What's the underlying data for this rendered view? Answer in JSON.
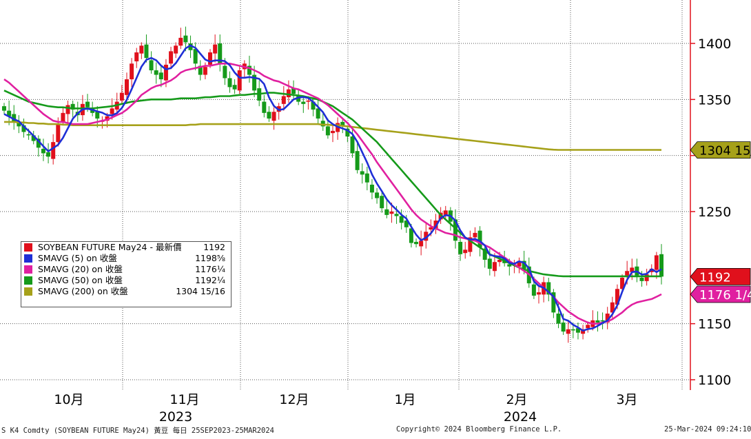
{
  "chart_data": {
    "type": "candlestick",
    "y_ticks": [
      1100,
      1150,
      1250,
      1300,
      1350,
      1400
    ],
    "y_tick_labels": [
      "1100",
      "1150",
      "1250",
      "1350",
      "1400"
    ],
    "ylim": [
      1090,
      1442
    ],
    "x_month_labels": [
      "10月",
      "11月",
      "12月",
      "1月",
      "2月",
      "3月"
    ],
    "x_year_labels": [
      "2023",
      "2024"
    ],
    "legend": [
      {
        "label": "SOYBEAN FUTURE May24 - 最新價",
        "value": "1192",
        "color": "#e0101c"
      },
      {
        "label": "SMAVG (5)  on 收盤",
        "value": "1198⅝",
        "color": "#1f2fd6"
      },
      {
        "label": "SMAVG (20)  on 收盤",
        "value": "1176¼",
        "color": "#e020a0"
      },
      {
        "label": "SMAVG (50)  on 收盤",
        "value": "1192¼",
        "color": "#159a1a"
      },
      {
        "label": "SMAVG (200)  on 收盤",
        "value": "1304 15/16",
        "color": "#a6a11a"
      }
    ],
    "price_tags": [
      {
        "text": "1304 15/16",
        "value": 1304.94,
        "bg": "#a6a11a",
        "fg": "#000000"
      },
      {
        "text": "1192",
        "value": 1192,
        "bg": "#e0101c",
        "fg": "#ffffff"
      },
      {
        "text": "1176 1/4",
        "value": 1176.25,
        "bg": "#e020a0",
        "fg": "#ffffff"
      }
    ],
    "series_close": [
      1340,
      1335,
      1330,
      1326,
      1321,
      1318,
      1313,
      1307,
      1302,
      1299,
      1312,
      1328,
      1338,
      1345,
      1341,
      1336,
      1346,
      1343,
      1338,
      1333,
      1331,
      1335,
      1342,
      1348,
      1356,
      1368,
      1382,
      1392,
      1398,
      1387,
      1376,
      1372,
      1368,
      1381,
      1393,
      1398,
      1405,
      1401,
      1394,
      1382,
      1372,
      1379,
      1392,
      1399,
      1382,
      1369,
      1361,
      1359,
      1376,
      1382,
      1372,
      1358,
      1349,
      1338,
      1333,
      1339,
      1344,
      1353,
      1359,
      1355,
      1348,
      1346,
      1349,
      1341,
      1333,
      1326,
      1318,
      1322,
      1329,
      1326,
      1317,
      1302,
      1287,
      1283,
      1276,
      1267,
      1262,
      1253,
      1247,
      1250,
      1246,
      1240,
      1236,
      1222,
      1221,
      1224,
      1232,
      1236,
      1242,
      1249,
      1251,
      1241,
      1224,
      1212,
      1216,
      1227,
      1231,
      1218,
      1207,
      1199,
      1205,
      1207,
      1204,
      1201,
      1203,
      1206,
      1199,
      1186,
      1175,
      1178,
      1187,
      1176,
      1160,
      1150,
      1143,
      1145,
      1144,
      1142,
      1145,
      1149,
      1153,
      1151,
      1152,
      1159,
      1169,
      1181,
      1191,
      1197,
      1200,
      1193,
      1188,
      1194,
      1199,
      1211,
      1192
    ],
    "sma5": [
      1337,
      1334.8,
      1332.4,
      1330.6,
      1326,
      1322,
      1317.6,
      1313,
      1308.2,
      1303.8,
      1306.6,
      1309.6,
      1315.8,
      1324.4,
      1332.8,
      1337.6,
      1341.2,
      1341.8,
      1340.8,
      1339.4,
      1338.2,
      1336,
      1335.8,
      1337.8,
      1342.4,
      1349.8,
      1359.2,
      1369.2,
      1379.2,
      1385.4,
      1387,
      1385,
      1380.2,
      1376.8,
      1378,
      1382.4,
      1389,
      1395.6,
      1398.2,
      1396,
      1390.8,
      1385.6,
      1383.8,
      1384.8,
      1384.8,
      1384.2,
      1380.6,
      1374,
      1369.4,
      1369.4,
      1370,
      1369.4,
      1368.4,
      1363.8,
      1352,
      1344.2,
      1340.6,
      1341.4,
      1345.6,
      1350,
      1351.8,
      1352.2,
      1351.4,
      1347.8,
      1343.4,
      1338.6,
      1331.4,
      1328,
      1325.6,
      1324.2,
      1322.4,
      1319.2,
      1312.2,
      1303,
      1293.8,
      1283,
      1275,
      1268.2,
      1261,
      1255.8,
      1251.6,
      1247.2,
      1243.8,
      1236.4,
      1229.4,
      1224.4,
      1226.6,
      1230.6,
      1236.8,
      1244.2,
      1246.8,
      1246.2,
      1241.8,
      1233.2,
      1226.8,
      1225,
      1225.6,
      1223.6,
      1219.8,
      1211.4,
      1210.4,
      1209.8,
      1208.2,
      1204.2,
      1203.4,
      1205.6,
      1204.4,
      1199.4,
      1187.8,
      1183.6,
      1182,
      1178.2,
      1174.2,
      1164.8,
      1154.2,
      1152.6,
      1149,
      1146.6,
      1143.8,
      1145.2,
      1145.8,
      1148,
      1150.6,
      1152.8,
      1158.4,
      1166.4,
      1178.4,
      1189.2,
      1196,
      1196.6,
      1193.8,
      1194.4,
      1198.6,
      1196,
      1198.6
    ],
    "sma20": [
      1368,
      1365,
      1361,
      1357,
      1353,
      1349,
      1345,
      1341,
      1337,
      1334,
      1331,
      1330,
      1330,
      1329,
      1328,
      1328,
      1328,
      1328,
      1329,
      1330,
      1331,
      1332,
      1334,
      1336,
      1338,
      1341,
      1345,
      1349,
      1354,
      1357,
      1360,
      1362,
      1363,
      1365,
      1367,
      1370,
      1374,
      1376,
      1377,
      1378,
      1379,
      1380,
      1380,
      1381,
      1382,
      1382,
      1382,
      1381,
      1380,
      1379,
      1378,
      1376,
      1374,
      1371,
      1369,
      1367,
      1366,
      1364,
      1362,
      1360,
      1359,
      1357,
      1355,
      1353,
      1351,
      1348,
      1345,
      1341,
      1337,
      1333,
      1329,
      1324,
      1319,
      1313,
      1307,
      1301,
      1294,
      1288,
      1282,
      1276,
      1270,
      1264,
      1258,
      1252,
      1247,
      1243,
      1240,
      1237,
      1235,
      1233,
      1231,
      1230,
      1229,
      1227,
      1226,
      1225,
      1224,
      1222,
      1220,
      1218,
      1215,
      1212,
      1209,
      1206,
      1203,
      1200,
      1197,
      1194,
      1190,
      1186,
      1182,
      1178,
      1174,
      1169,
      1165,
      1161,
      1158,
      1155,
      1153,
      1151,
      1150,
      1150,
      1151,
      1152,
      1154,
      1157,
      1160,
      1164,
      1167,
      1169,
      1170,
      1171,
      1172,
      1174,
      1176.25
    ],
    "sma50": [
      1358,
      1356,
      1354,
      1352,
      1350,
      1348,
      1347,
      1346,
      1345,
      1344,
      1343.5,
      1343,
      1343,
      1342.5,
      1342,
      1342,
      1342,
      1342,
      1342,
      1342.5,
      1343,
      1343.5,
      1344,
      1345,
      1346,
      1347,
      1348,
      1348.5,
      1349,
      1349.5,
      1350,
      1350,
      1350,
      1350,
      1350,
      1350.5,
      1351,
      1351,
      1351,
      1351,
      1351.5,
      1352,
      1352,
      1352.5,
      1353,
      1353,
      1353,
      1353.5,
      1354,
      1354,
      1354.5,
      1355,
      1355,
      1355.5,
      1356,
      1356,
      1355.5,
      1355,
      1354.5,
      1354,
      1353.5,
      1353,
      1352,
      1351,
      1350,
      1348,
      1346,
      1344,
      1341,
      1338,
      1335,
      1332,
      1328,
      1324,
      1320,
      1316,
      1312,
      1307,
      1302,
      1297,
      1292,
      1287,
      1282,
      1277,
      1272,
      1267,
      1262,
      1257,
      1252,
      1247,
      1243,
      1239,
      1235,
      1231,
      1227,
      1224,
      1221,
      1218,
      1215,
      1212,
      1210,
      1208,
      1206,
      1204,
      1202,
      1200,
      1198.5,
      1197,
      1196,
      1195,
      1194,
      1193.5,
      1193,
      1192.5,
      1192.25,
      1192.25,
      1192.25,
      1192.25,
      1192.25,
      1192.25,
      1192.25,
      1192.25,
      1192.25,
      1192.25,
      1192.25,
      1192.25,
      1192.25,
      1192.25,
      1192.25,
      1192.25,
      1192.25,
      1192.25,
      1192.25,
      1192.25,
      1192.25
    ],
    "sma200": [
      1330,
      1330,
      1330,
      1329.5,
      1329.5,
      1329,
      1329,
      1328.5,
      1328.5,
      1328,
      1328,
      1328,
      1327.5,
      1327.5,
      1327,
      1327,
      1327,
      1327,
      1327,
      1327,
      1327,
      1327,
      1327,
      1327,
      1327,
      1327,
      1327,
      1327,
      1327,
      1327,
      1327,
      1327,
      1327,
      1327,
      1327,
      1327,
      1327,
      1327,
      1327.5,
      1327.5,
      1328,
      1328,
      1328,
      1328,
      1328,
      1328,
      1328,
      1328,
      1328,
      1328,
      1328,
      1328,
      1328,
      1328,
      1328,
      1328,
      1328,
      1328,
      1328,
      1328,
      1328,
      1328,
      1328,
      1328,
      1328,
      1327.5,
      1327.5,
      1327,
      1327,
      1326.5,
      1326,
      1325.5,
      1325,
      1324.5,
      1324,
      1323.5,
      1323,
      1322.5,
      1322,
      1321.5,
      1321,
      1320.5,
      1320,
      1319.5,
      1319,
      1318.5,
      1318,
      1317.5,
      1317,
      1316.5,
      1316,
      1315.5,
      1315,
      1314.5,
      1314,
      1313.5,
      1313,
      1312.5,
      1312,
      1311.5,
      1311,
      1310.5,
      1310,
      1309.5,
      1309,
      1308.5,
      1308,
      1307.5,
      1307,
      1306.5,
      1306,
      1305.5,
      1305.2,
      1305,
      1305,
      1305,
      1305,
      1305,
      1305,
      1305,
      1305,
      1305,
      1305,
      1305,
      1305,
      1305,
      1305,
      1305,
      1305,
      1305,
      1305,
      1305,
      1305,
      1305,
      1304.94
    ]
  },
  "footer": {
    "left": "S K4 Comdty (SOYBEAN FUTURE    May24) 黃豆  每日 25SEP2023-25MAR2024",
    "center": "Copyright© 2024 Bloomberg Finance L.P.",
    "right": "25-Mar-2024 09:24:10"
  },
  "colors": {
    "up": "#e0101c",
    "down": "#159a1a",
    "axis": "#e0101c",
    "grid": "#555555"
  }
}
